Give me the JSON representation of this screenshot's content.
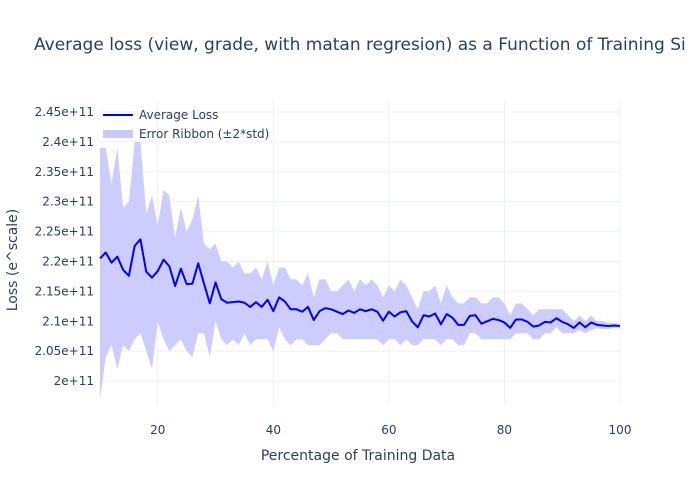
{
  "chart_data": {
    "type": "line",
    "title": "Average loss (view, grade, with matan regresion) as a Function of Training Si",
    "xlabel": "Percentage of Training Data",
    "ylabel": "Loss (e^scale)",
    "xlim": [
      10,
      100
    ],
    "ylim": [
      196000000000.0,
      247000000000.0
    ],
    "x_ticks": [
      20,
      40,
      60,
      80,
      100
    ],
    "x_tick_labels": [
      "20",
      "40",
      "60",
      "80",
      "100"
    ],
    "y_ticks": [
      200000000000.0,
      205000000000.0,
      210000000000.0,
      215000000000.0,
      220000000000.0,
      225000000000.0,
      230000000000.0,
      235000000000.0,
      240000000000.0,
      245000000000.0
    ],
    "y_tick_labels": [
      "2e+11",
      "2.05e+11",
      "2.1e+11",
      "2.15e+11",
      "2.2e+11",
      "2.25e+11",
      "2.3e+11",
      "2.35e+11",
      "2.4e+11",
      "2.45e+11"
    ],
    "grid": true,
    "legend_position": "top-left",
    "legend": [
      {
        "label": "Average Loss",
        "kind": "line",
        "color": "#0000ff"
      },
      {
        "label": "Error Ribbon (±2*std)",
        "kind": "band",
        "color": "#c9c9ff"
      }
    ],
    "series": [
      {
        "name": "Average Loss",
        "color": "#0000ff",
        "x": [
          10,
          11,
          12,
          13,
          14,
          15,
          16,
          17,
          18,
          19,
          20,
          21,
          22,
          23,
          24,
          25,
          26,
          27,
          28,
          29,
          30,
          31,
          32,
          33,
          34,
          35,
          36,
          37,
          38,
          39,
          40,
          41,
          42,
          43,
          44,
          45,
          46,
          47,
          48,
          49,
          50,
          51,
          52,
          53,
          54,
          55,
          56,
          57,
          58,
          59,
          60,
          61,
          62,
          63,
          64,
          65,
          66,
          67,
          68,
          69,
          70,
          71,
          72,
          73,
          74,
          75,
          76,
          77,
          78,
          79,
          80,
          81,
          82,
          83,
          84,
          85,
          86,
          87,
          88,
          89,
          90,
          91,
          92,
          93,
          94,
          95,
          96,
          97,
          98,
          99,
          100
        ],
        "y": [
          220500000000.0,
          221500000000.0,
          219800000000.0,
          220800000000.0,
          218600000000.0,
          217600000000.0,
          222600000000.0,
          223700000000.0,
          218300000000.0,
          217300000000.0,
          218400000000.0,
          220300000000.0,
          219200000000.0,
          215900000000.0,
          218800000000.0,
          216200000000.0,
          216300000000.0,
          219700000000.0,
          216300000000.0,
          213000000000.0,
          216500000000.0,
          213700000000.0,
          213100000000.0,
          213200000000.0,
          213300000000.0,
          213100000000.0,
          212400000000.0,
          213200000000.0,
          212400000000.0,
          213600000000.0,
          211700000000.0,
          214000000000.0,
          213300000000.0,
          212000000000.0,
          212000000000.0,
          211600000000.0,
          212400000000.0,
          210200000000.0,
          211700000000.0,
          212200000000.0,
          212000000000.0,
          211600000000.0,
          211200000000.0,
          211800000000.0,
          211400000000.0,
          212000000000.0,
          211700000000.0,
          212000000000.0,
          211600000000.0,
          210100000000.0,
          211600000000.0,
          210800000000.0,
          211500000000.0,
          211700000000.0,
          210000000000.0,
          209000000000.0,
          211000000000.0,
          210800000000.0,
          211300000000.0,
          209500000000.0,
          211200000000.0,
          210600000000.0,
          209400000000.0,
          209400000000.0,
          210900000000.0,
          211000000000.0,
          209600000000.0,
          210000000000.0,
          210400000000.0,
          210200000000.0,
          209800000000.0,
          208900000000.0,
          210300000000.0,
          210300000000.0,
          209900000000.0,
          209100000000.0,
          209300000000.0,
          209900000000.0,
          209800000000.0,
          210500000000.0,
          209900000000.0,
          209500000000.0,
          208900000000.0,
          209800000000.0,
          209000000000.0,
          209800000000.0,
          209400000000.0,
          209300000000.0,
          209200000000.0,
          209300000000.0,
          209200000000.0
        ]
      }
    ],
    "band": {
      "name": "Error Ribbon (±2*std)",
      "color": "#c9c9ff",
      "upper": [
        239000000000.0,
        239000000000.0,
        233000000000.0,
        239000000000.0,
        229000000000.0,
        230000000000.0,
        240000000000.0,
        240000000000.0,
        228000000000.0,
        231000000000.0,
        226000000000.0,
        232000000000.0,
        231000000000.0,
        224000000000.0,
        229000000000.0,
        225000000000.0,
        227000000000.0,
        231000000000.0,
        223000000000.0,
        222000000000.0,
        223000000000.0,
        220000000000.0,
        220000000000.0,
        219000000000.0,
        220000000000.0,
        218000000000.0,
        218000000000.0,
        219000000000.0,
        217000000000.0,
        220000000000.0,
        216000000000.0,
        219000000000.0,
        219000000000.0,
        217000000000.0,
        217000000000.0,
        216000000000.0,
        218000000000.0,
        214000000000.0,
        217000000000.0,
        217000000000.0,
        215000000000.0,
        215000000000.0,
        216000000000.0,
        217000000000.0,
        215000000000.0,
        217000000000.0,
        216000000000.0,
        217000000000.0,
        216000000000.0,
        214000000000.0,
        216000000000.0,
        215000000000.0,
        217000000000.0,
        216000000000.0,
        214000000000.0,
        212000000000.0,
        215000000000.0,
        215000000000.0,
        216000000000.0,
        213000000000.0,
        216000000000.0,
        214000000000.0,
        213000000000.0,
        213000000000.0,
        214000000000.0,
        214000000000.0,
        213000000000.0,
        213000000000.0,
        214000000000.0,
        214000000000.0,
        213000000000.0,
        211000000000.0,
        213000000000.0,
        213000000000.0,
        212000000000.0,
        211000000000.0,
        212000000000.0,
        212000000000.0,
        212000000000.0,
        212000000000.0,
        212000000000.0,
        211000000000.0,
        210000000000.0,
        211000000000.0,
        210000000000.0,
        211000000000.0,
        210000000000.0,
        210000000000.0,
        209700000000.0,
        209700000000.0,
        209600000000.0
      ],
      "lower": [
        197000000000.0,
        204000000000.0,
        206000000000.0,
        202000000000.0,
        206000000000.0,
        205000000000.0,
        207000000000.0,
        208000000000.0,
        205000000000.0,
        202000000000.0,
        210000000000.0,
        207000000000.0,
        205000000000.0,
        206000000000.0,
        207000000000.0,
        205000000000.0,
        204000000000.0,
        208000000000.0,
        208000000000.0,
        204000000000.0,
        210000000000.0,
        207000000000.0,
        206000000000.0,
        207000000000.0,
        206000000000.0,
        208000000000.0,
        206000000000.0,
        207000000000.0,
        207000000000.0,
        207000000000.0,
        205000000000.0,
        209000000000.0,
        207000000000.0,
        206000000000.0,
        207000000000.0,
        207000000000.0,
        206000000000.0,
        206000000000.0,
        206000000000.0,
        207000000000.0,
        208000000000.0,
        208000000000.0,
        207000000000.0,
        207000000000.0,
        207000000000.0,
        207000000000.0,
        207000000000.0,
        207000000000.0,
        207000000000.0,
        206000000000.0,
        207000000000.0,
        207000000000.0,
        206000000000.0,
        207000000000.0,
        206000000000.0,
        206000000000.0,
        207000000000.0,
        207000000000.0,
        207000000000.0,
        206000000000.0,
        207000000000.0,
        207000000000.0,
        206000000000.0,
        206000000000.0,
        208000000000.0,
        208000000000.0,
        207000000000.0,
        207000000000.0,
        207000000000.0,
        207000000000.0,
        207000000000.0,
        207000000000.0,
        208000000000.0,
        208000000000.0,
        208000000000.0,
        207000000000.0,
        207000000000.0,
        208000000000.0,
        208000000000.0,
        209000000000.0,
        208000000000.0,
        208000000000.0,
        208000000000.0,
        208500000000.0,
        208000000000.0,
        208500000000.0,
        208800000000.0,
        208700000000.0,
        208700000000.0,
        208900000000.0,
        208800000000.0
      ]
    }
  }
}
